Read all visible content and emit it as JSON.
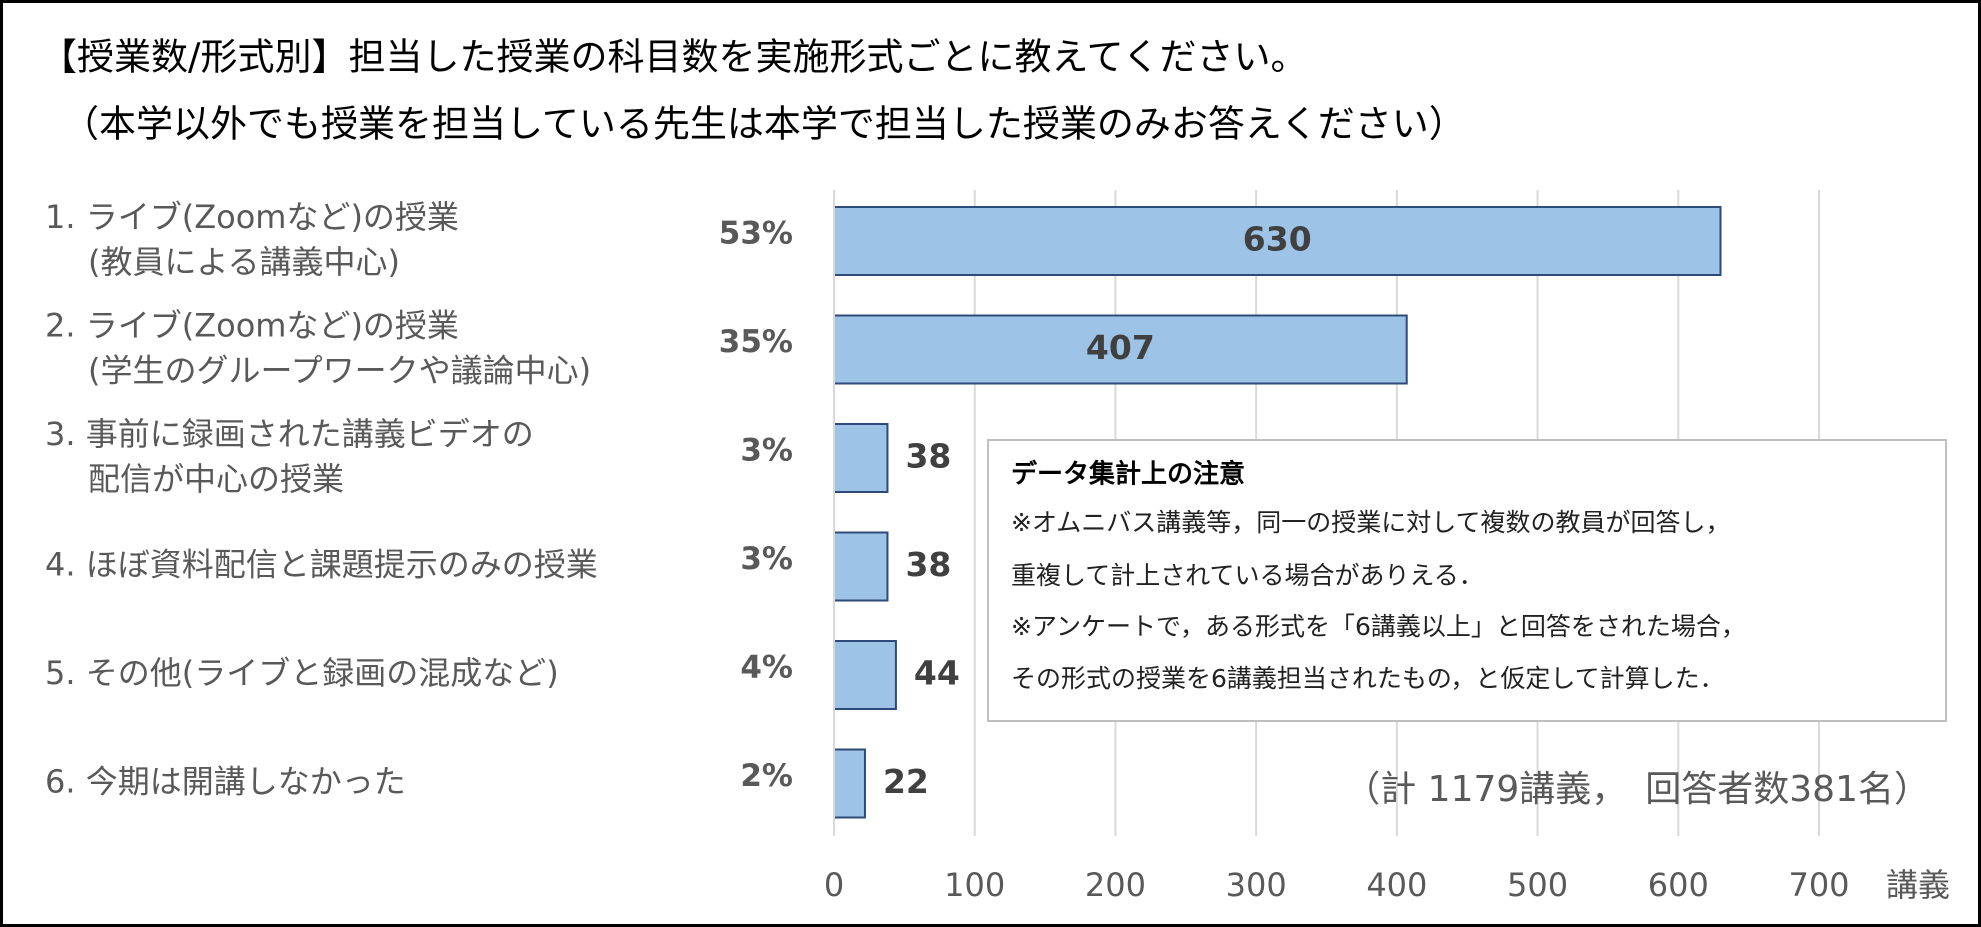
{
  "chart_data": {
    "type": "bar",
    "orientation": "horizontal",
    "title": [
      "【授業数/形式別】担当した授業の科目数を実施形式ごとに教えてください。",
      "（本学以外でも授業を担当している先生は本学で担当した授業のみお答えください）"
    ],
    "categories": [
      [
        "1. ライブ(Zoomなど)の授業",
        "(教員による講義中心)"
      ],
      [
        "2. ライブ(Zoomなど)の授業",
        "(学生のグループワークや議論中心)"
      ],
      [
        "3. 事前に録画された講義ビデオの",
        "配信が中心の授業"
      ],
      [
        "4. ほぼ資料配信と課題提示のみの授業"
      ],
      [
        "5. その他(ライブと録画の混成など)"
      ],
      [
        "6. 今期は開講しなかった"
      ]
    ],
    "share_labels": [
      "53%",
      "35%",
      "3%",
      "3%",
      "4%",
      "2%"
    ],
    "values": [
      630,
      407,
      38,
      38,
      44,
      22
    ],
    "color": "#9dc3e6",
    "edge_color": "#2e4a78",
    "xlim": [
      0,
      700
    ],
    "xticks": [
      0,
      100,
      200,
      300,
      400,
      500,
      600,
      700
    ],
    "grid": true,
    "x_label": "講義",
    "note": {
      "title": "データ集計上の注意",
      "lines": [
        "※オムニバス講義等，同一の授業に対して複数の教員が回答し，",
        "重複して計上されている場合がありえる．",
        "※アンケートで，ある形式を「6講義以上」と回答をされた場合，",
        "その形式の授業を6講義担当されたもの，と仮定して計算した．"
      ]
    },
    "total_note": "（計 1179講義，　回答者数381名）"
  }
}
